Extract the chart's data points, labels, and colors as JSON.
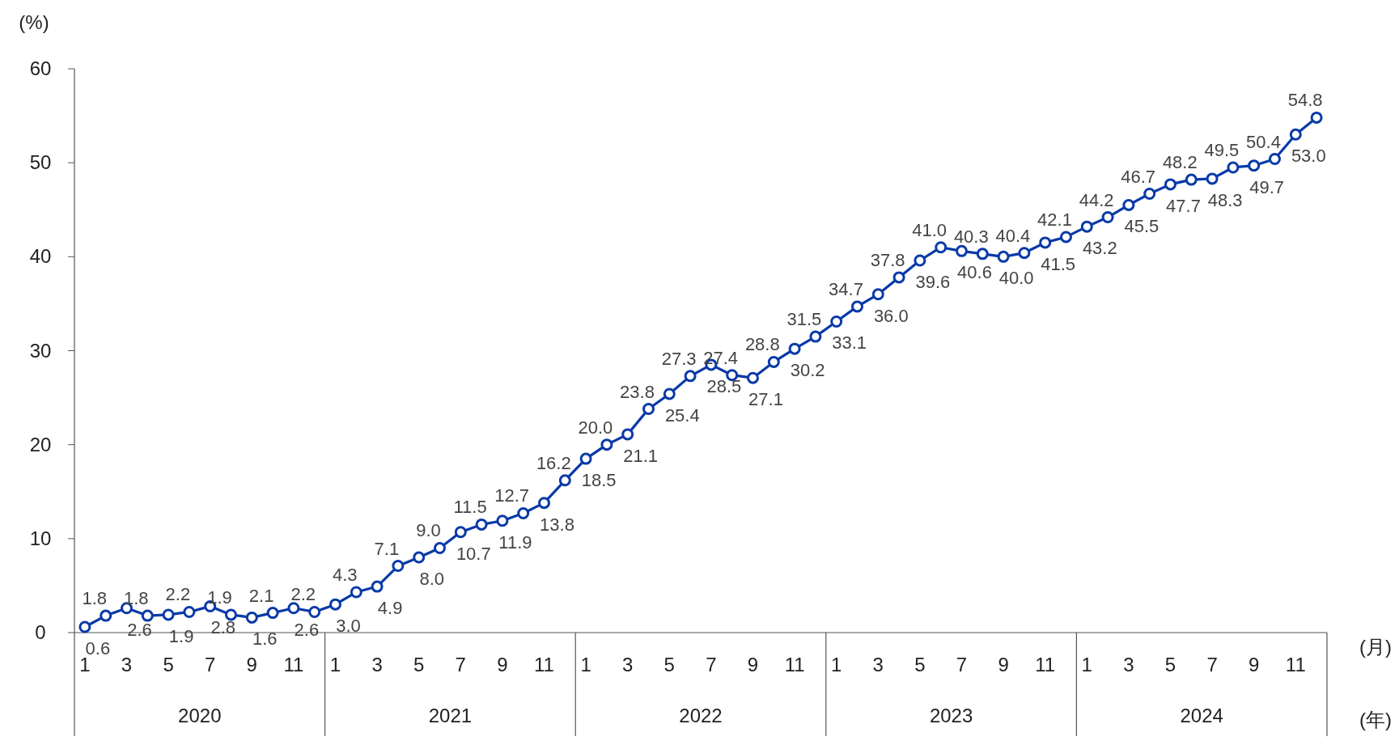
{
  "chart_data": {
    "type": "line",
    "ylabel": "(%)",
    "categories": [
      "1",
      null,
      "3",
      null,
      "5",
      null,
      "7",
      null,
      "9",
      null,
      "11",
      null,
      "1",
      null,
      "3",
      null,
      "5",
      null,
      "7",
      null,
      "9",
      null,
      "11",
      null,
      "1",
      null,
      "3",
      null,
      "5",
      null,
      "7",
      null,
      "9",
      null,
      "11",
      null,
      "1",
      null,
      "3",
      null,
      "5",
      null,
      "7",
      null,
      "9",
      null,
      "11",
      null,
      "1",
      null,
      "3",
      null,
      "5",
      null,
      "7",
      null,
      "9",
      null,
      "11",
      null
    ],
    "series": [
      {
        "color": "#0a3aa8",
        "values": [
          0.6,
          1.8,
          2.6,
          1.8,
          1.9,
          2.2,
          2.8,
          1.9,
          1.6,
          2.1,
          2.6,
          2.2,
          3.0,
          4.3,
          4.9,
          7.1,
          8.0,
          9.0,
          10.7,
          11.5,
          11.9,
          12.7,
          13.8,
          16.2,
          18.5,
          20.0,
          21.1,
          23.8,
          25.4,
          27.3,
          28.5,
          27.4,
          27.1,
          28.8,
          30.2,
          31.5,
          33.1,
          34.7,
          36.0,
          37.8,
          39.6,
          41.0,
          40.6,
          40.3,
          40.0,
          40.4,
          41.5,
          42.1,
          43.2,
          44.2,
          45.5,
          46.7,
          47.7,
          48.2,
          48.3,
          49.5,
          49.7,
          50.4,
          53.0,
          54.8
        ]
      }
    ],
    "value_labels": [
      "0.6",
      "1.8",
      "2.6",
      "1.8",
      "1.9",
      "2.2",
      "2.8",
      "1.9",
      "1.6",
      "2.1",
      "2.6",
      "2.2",
      "3.0",
      "4.3",
      "4.9",
      "7.1",
      "8.0",
      "9.0",
      "10.7",
      "11.5",
      "11.9",
      "12.7",
      "13.8",
      "16.2",
      "18.5",
      "20.0",
      "21.1",
      "23.8",
      "25.4",
      "27.3",
      "28.5",
      "27.4",
      "27.1",
      "28.8",
      "30.2",
      "31.5",
      "33.1",
      "34.7",
      "36.0",
      "37.8",
      "39.6",
      "41.0",
      "40.6",
      "40.3",
      "40.0",
      "40.4",
      "41.5",
      "42.1",
      "43.2",
      "44.2",
      "45.5",
      "46.7",
      "47.7",
      "48.2",
      "48.3",
      "49.5",
      "49.7",
      "50.4",
      "53.0",
      "54.8"
    ],
    "ylim": [
      0,
      60
    ],
    "yticks": [
      0,
      10,
      20,
      30,
      40,
      50,
      60
    ],
    "grid": false,
    "marker": "circle",
    "line_style": "solid",
    "annotations": [
      "2020",
      "2021",
      "2022",
      "2023",
      "2024",
      "(月)",
      "(年)"
    ]
  }
}
